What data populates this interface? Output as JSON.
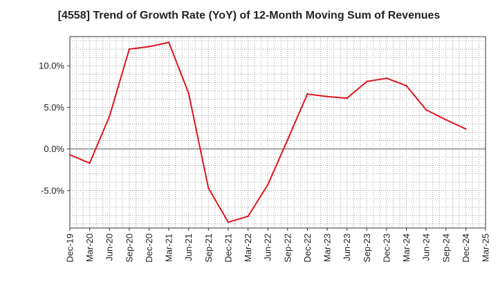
{
  "chart_data": {
    "type": "line",
    "title": "[4558]  Trend of Growth Rate (YoY) of 12-Month Moving Sum of Revenues",
    "xlabel": "",
    "ylabel": "",
    "x": [
      "Dec-19",
      "Mar-20",
      "Jun-20",
      "Sep-20",
      "Dec-20",
      "Mar-21",
      "Jun-21",
      "Sep-21",
      "Dec-21",
      "Mar-22",
      "Jun-22",
      "Sep-22",
      "Dec-22",
      "Mar-23",
      "Jun-23",
      "Sep-23",
      "Dec-23",
      "Mar-24",
      "Jun-24",
      "Sep-24",
      "Dec-24",
      "Mar-25"
    ],
    "series": [
      {
        "color": "#e0141e",
        "values": [
          -0.7,
          -1.7,
          3.9,
          12.0,
          12.3,
          12.8,
          6.7,
          -4.7,
          -8.8,
          -8.1,
          -4.3,
          1.1,
          6.6,
          6.3,
          6.1,
          8.1,
          8.5,
          7.6,
          4.7,
          3.5,
          2.4,
          null
        ]
      }
    ],
    "yticks": [
      {
        "value": 10,
        "label": "10.0%"
      },
      {
        "value": 5,
        "label": "5.0%"
      },
      {
        "value": 0,
        "label": "0.0%"
      },
      {
        "value": -5,
        "label": "-5.0%"
      }
    ],
    "ylim": [
      -9.5,
      13.5
    ],
    "grid": true
  }
}
